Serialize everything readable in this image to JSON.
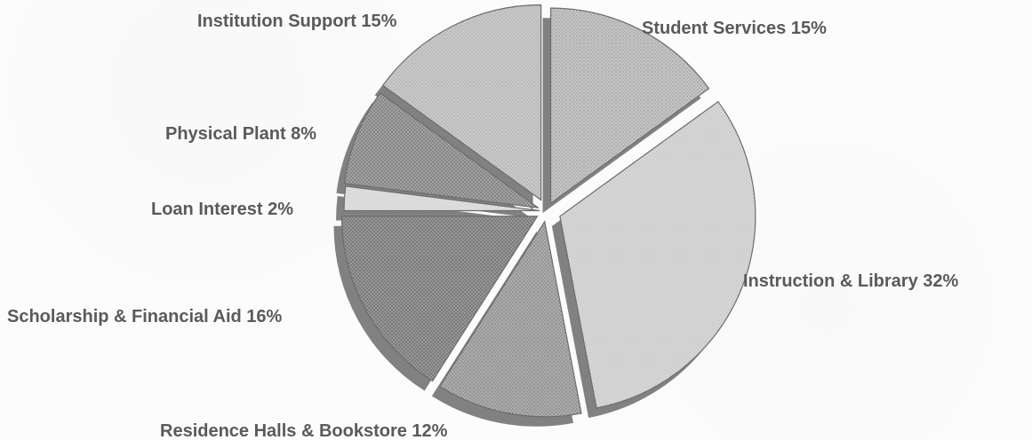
{
  "chart_data": {
    "type": "pie",
    "categories": [
      "Student Services",
      "Instruction & Library",
      "Residence Halls & Bookstore",
      "Scholarship & Financial Aid",
      "Loan Interest",
      "Physical Plant",
      "Institution Support"
    ],
    "values": [
      15,
      32,
      12,
      16,
      2,
      8,
      15
    ],
    "labels": [
      "Student Services 15%",
      "Instruction & Library 32%",
      "Residence Halls & Bookstore 12%",
      "Scholarship & Financial Aid 16%",
      "Loan Interest 2%",
      "Physical Plant 8%",
      "Institution Support 15%"
    ],
    "colors": [
      "#bdbdbd",
      "#d2d2d2",
      "#a6a6a6",
      "#8f8f8f",
      "#d9d9d9",
      "#9b9b9b",
      "#c7c7c7"
    ],
    "shadow_color": "#7a7a7a"
  }
}
